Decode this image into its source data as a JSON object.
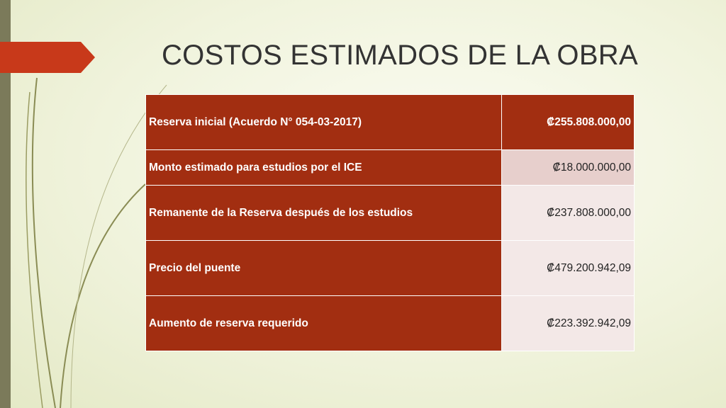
{
  "title": "COSTOS ESTIMADOS DE LA OBRA",
  "colors": {
    "accent": "#a22e11",
    "value_light": "#e7cfcc",
    "value_lighter": "#f3e8e7",
    "side_bar": "#7b7a5a",
    "arrow": "#c8391a"
  },
  "table": {
    "rows": [
      {
        "label": "Reserva inicial (Acuerdo N° 054-03-2017)",
        "value": "₡255.808.000,00"
      },
      {
        "label": "Monto estimado para estudios por el ICE",
        "value": "₡18.000.000,00"
      },
      {
        "label": "Remanente de la Reserva  después de los estudios",
        "value": "₡237.808.000,00"
      },
      {
        "label": "Precio del puente",
        "value": "₡479.200.942,09"
      },
      {
        "label": "Aumento de reserva requerido",
        "value": "₡223.392.942,09"
      }
    ]
  }
}
